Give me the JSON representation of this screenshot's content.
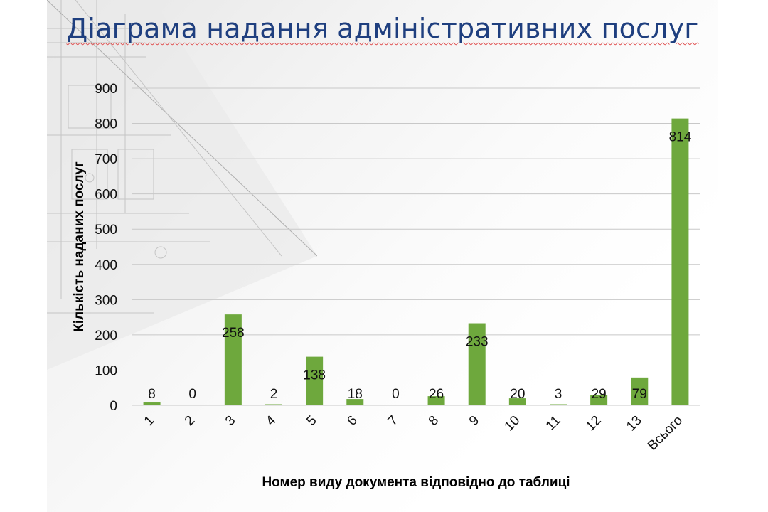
{
  "title": "Діаграма надання адміністративних послуг",
  "chart_data": {
    "type": "bar",
    "title": "Діаграма надання адміністративних послуг",
    "xlabel": "Номер виду документа відповідно до таблиці",
    "ylabel": "Кількість наданих послуг",
    "categories": [
      "1",
      "2",
      "3",
      "4",
      "5",
      "6",
      "7",
      "8",
      "9",
      "10",
      "11",
      "12",
      "13",
      "Всього"
    ],
    "values": [
      8,
      0,
      258,
      2,
      138,
      18,
      0,
      26,
      233,
      20,
      3,
      29,
      79,
      814
    ],
    "value_labels": [
      "8",
      "0",
      "258",
      "2",
      "138",
      "18",
      "0",
      "26",
      "233",
      "20",
      "3",
      "29",
      "79",
      "814"
    ],
    "yticks": [
      "0",
      "100",
      "200",
      "300",
      "400",
      "500",
      "600",
      "700",
      "800",
      "900"
    ],
    "ylim": [
      0,
      900
    ],
    "grid": true,
    "legend": "none",
    "bar_color": "#6ea83d"
  }
}
